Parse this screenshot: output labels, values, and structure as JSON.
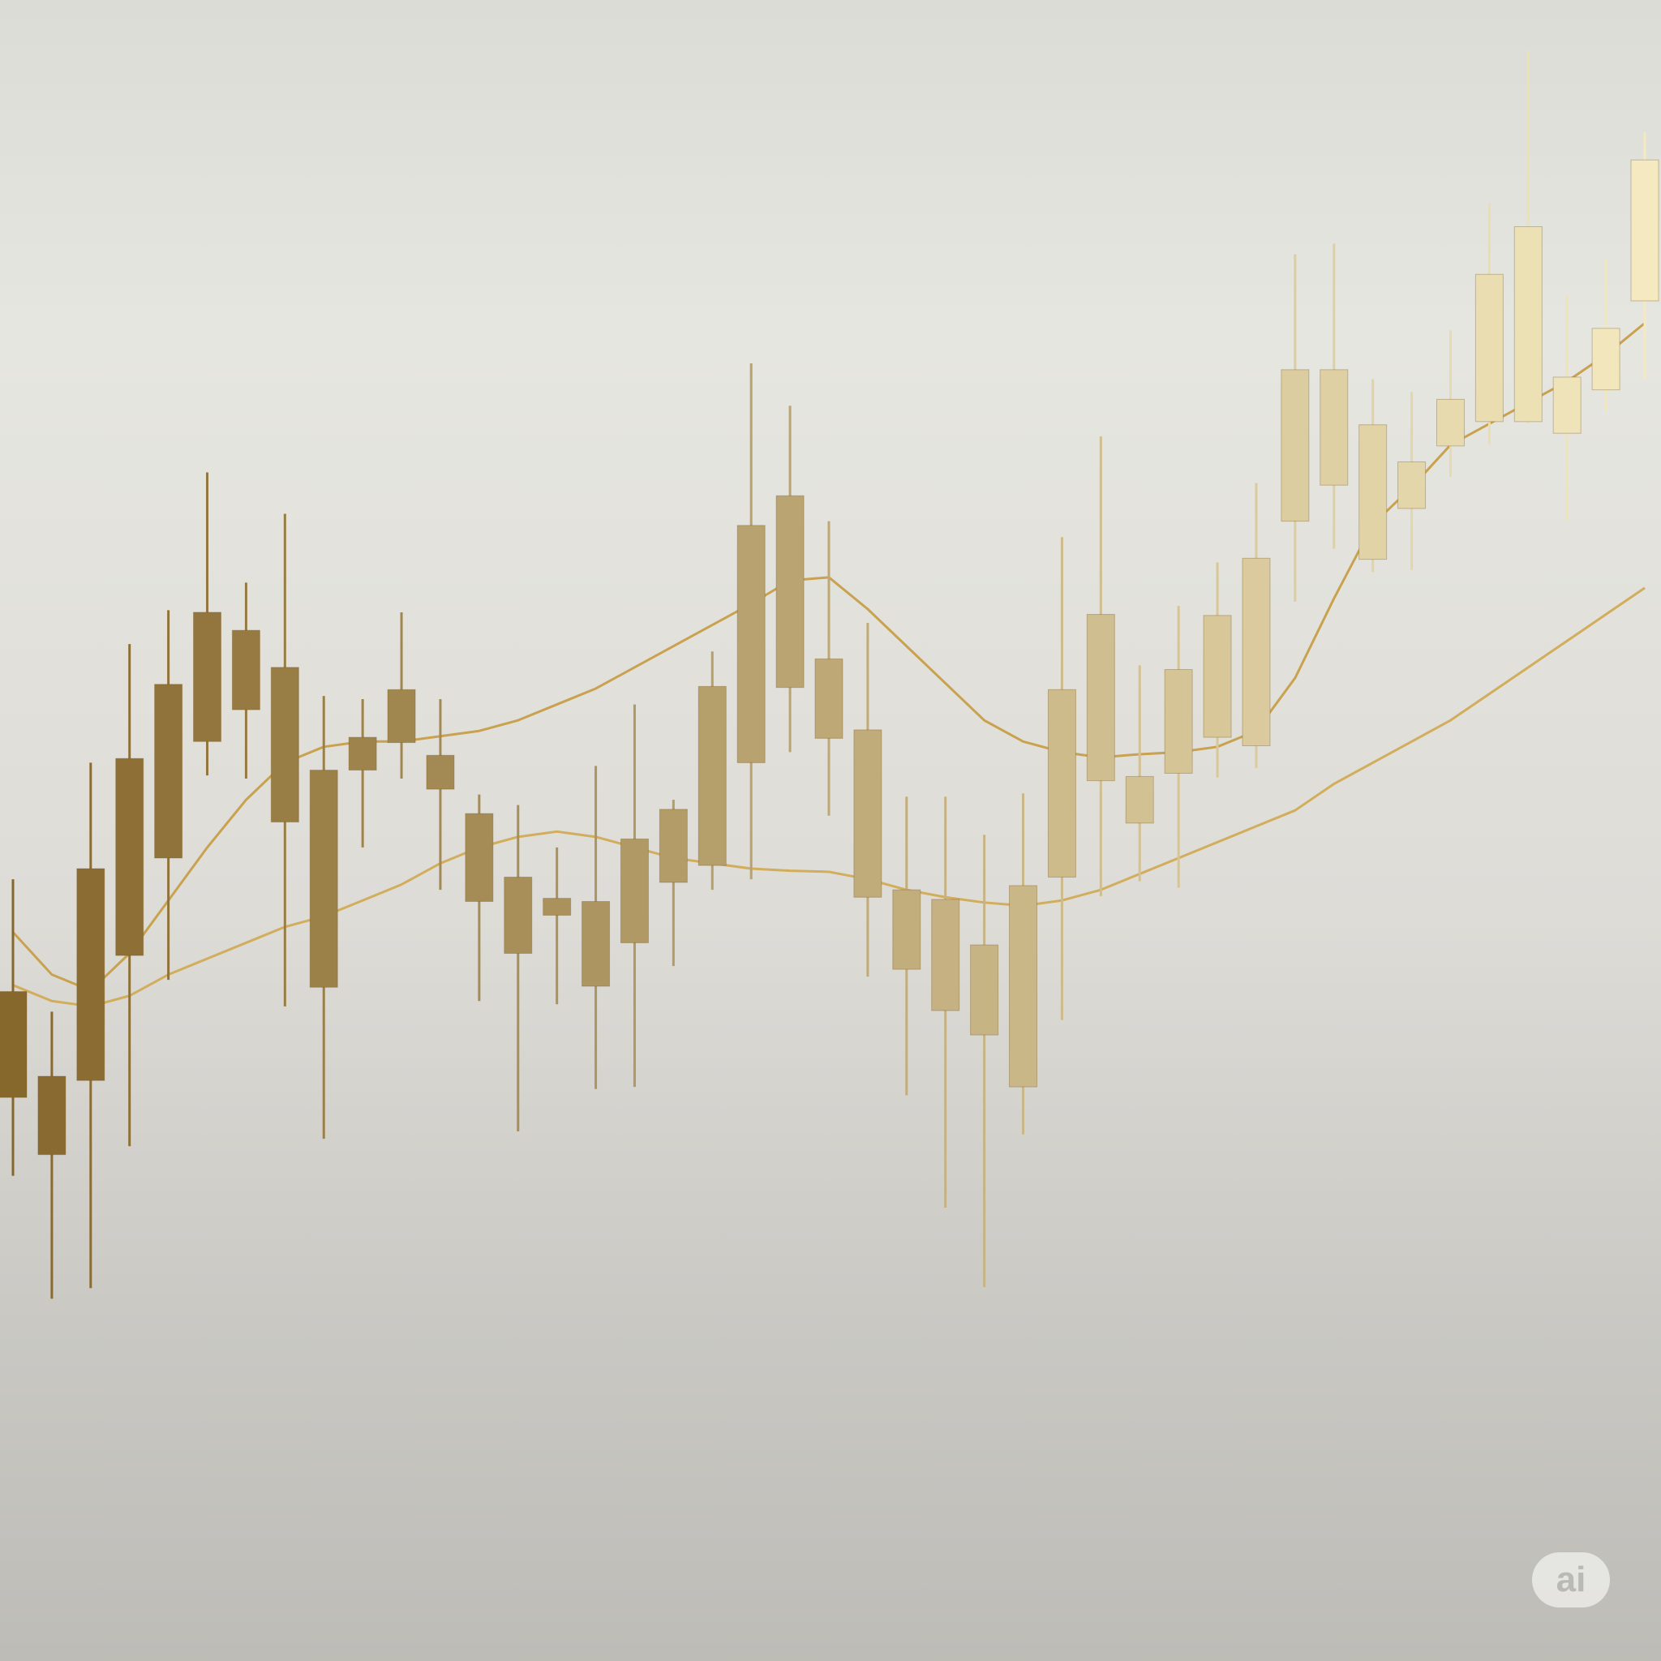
{
  "chart_data": {
    "type": "candlestick",
    "categories": [
      null,
      null,
      null,
      null,
      null,
      null,
      null,
      null,
      null,
      null,
      null,
      null,
      null,
      null,
      null,
      null,
      null,
      null,
      null,
      null,
      null,
      null,
      null,
      null,
      null,
      null,
      null,
      null,
      null,
      null,
      null,
      null,
      null,
      null,
      null,
      null,
      null,
      null,
      null,
      null,
      null,
      null,
      null
    ],
    "open": [
      532,
      478,
      548,
      666,
      758,
      868,
      898,
      792,
      636,
      841,
      867,
      823,
      717,
      668,
      704,
      637,
      678,
      735,
      751,
      848,
      919,
      871,
      721,
      653,
      614,
      591,
      542,
      740,
      831,
      791,
      838,
      872,
      864,
      1076,
      1110,
      1040,
      1088,
      1147,
      1170,
      1170,
      1159,
      1200,
      1284
    ],
    "high": [
      738,
      613,
      848,
      960,
      992,
      1122,
      1018,
      1083,
      911,
      908,
      990,
      908,
      818,
      808,
      768,
      845,
      903,
      813,
      953,
      1225,
      1185,
      1076,
      980,
      816,
      816,
      780,
      819,
      1061,
      1156,
      940,
      996,
      1037,
      1112,
      1328,
      1338,
      1210,
      1198,
      1256,
      1376,
      1520,
      1290,
      1323,
      1443
    ],
    "low": [
      458,
      342,
      352,
      486,
      643,
      836,
      833,
      618,
      493,
      768,
      833,
      728,
      623,
      500,
      620,
      540,
      542,
      656,
      728,
      738,
      858,
      798,
      646,
      534,
      428,
      353,
      497,
      605,
      722,
      736,
      730,
      834,
      843,
      1000,
      1050,
      1028,
      1030,
      1118,
      1148,
      1168,
      1076,
      1180,
      1210
    ],
    "close": [
      632,
      552,
      748,
      852,
      922,
      990,
      973,
      938,
      841,
      872,
      917,
      855,
      800,
      740,
      720,
      717,
      776,
      804,
      920,
      1072,
      1100,
      946,
      879,
      728,
      719,
      676,
      732,
      917,
      988,
      835,
      936,
      987,
      1041,
      1219,
      1219,
      1167,
      1132,
      1191,
      1309,
      1354,
      1212,
      1258,
      1417
    ],
    "ylim": [
      0,
      1568
    ],
    "color_start": "#86672c",
    "color_end": "#f4e9c0",
    "lines": [
      {
        "color": "#c9a24f",
        "values": [
          688,
          648,
          633,
          668,
          718,
          768,
          813,
          848,
          863,
          868,
          868,
          873,
          878,
          888,
          903,
          918,
          938,
          958,
          978,
          998,
          1020,
          1023,
          993,
          958,
          923,
          888,
          868,
          858,
          853,
          856,
          858,
          863,
          878,
          928,
          1003,
          1073,
          1108,
          1148,
          1168,
          1188,
          1208,
          1233,
          1263
        ]
      },
      {
        "color": "#d1ad5c",
        "values": [
          638,
          623,
          618,
          628,
          648,
          663,
          678,
          693,
          703,
          718,
          733,
          753,
          768,
          778,
          783,
          778,
          768,
          758,
          753,
          748,
          746,
          745,
          738,
          728,
          721,
          716,
          713,
          718,
          728,
          743,
          758,
          773,
          788,
          803,
          828,
          848,
          868,
          888,
          913,
          938,
          963,
          988,
          1013
        ]
      }
    ]
  },
  "badge": "ai"
}
